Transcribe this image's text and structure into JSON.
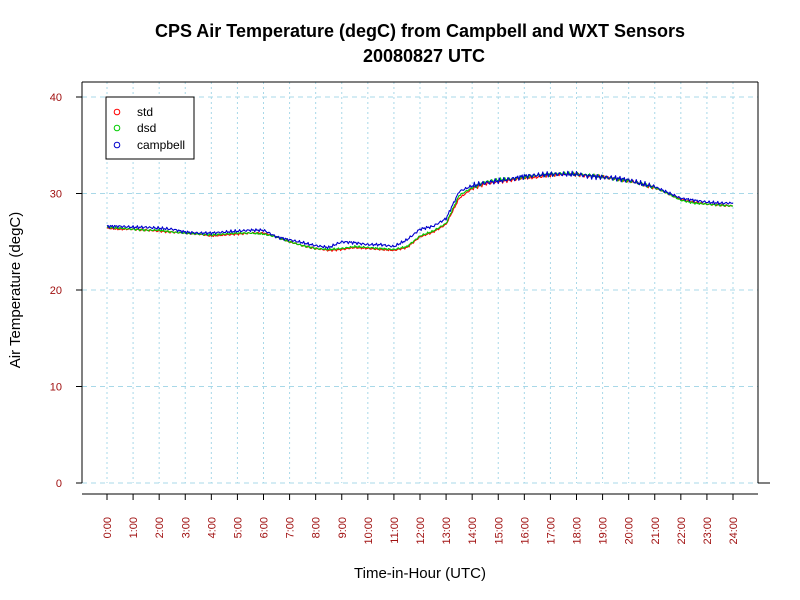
{
  "colors": {
    "std": "#ff0000",
    "dsd": "#00cc00",
    "campbell": "#0000cc",
    "grid": "#a8d8e8",
    "tick_label": "#a01010"
  },
  "chart_data": {
    "type": "line",
    "title": "CPS Air Temperature (degC) from Campbell and WXT Sensors",
    "subtitle": "20080827  UTC",
    "xlabel": "Time-in-Hour (UTC)",
    "ylabel": "Air Temperature (degC)",
    "xlim": [
      0,
      24
    ],
    "ylim": [
      0,
      40
    ],
    "grid": true,
    "legend_position": "top-left",
    "yticks": [
      "0",
      "10",
      "20",
      "30",
      "40"
    ],
    "xticks": [
      "0:00",
      "1:00",
      "2:00",
      "3:00",
      "4:00",
      "5:00",
      "6:00",
      "7:00",
      "8:00",
      "9:00",
      "10:00",
      "11:00",
      "12:00",
      "13:00",
      "14:00",
      "15:00",
      "16:00",
      "17:00",
      "18:00",
      "19:00",
      "20:00",
      "21:00",
      "22:00",
      "23:00",
      "24:00"
    ],
    "x": [
      0,
      0.5,
      1,
      1.5,
      2,
      2.5,
      3,
      3.5,
      4,
      4.5,
      5,
      5.5,
      6,
      6.5,
      7,
      7.5,
      8,
      8.5,
      9,
      9.5,
      10,
      10.5,
      11,
      11.5,
      12,
      12.5,
      13,
      13.5,
      14,
      14.5,
      15,
      15.5,
      16,
      16.5,
      17,
      17.5,
      18,
      18.5,
      19,
      19.5,
      20,
      20.5,
      21,
      21.5,
      22,
      22.5,
      23,
      23.5,
      24
    ],
    "series": [
      {
        "name": "std",
        "values": [
          26.4,
          26.3,
          26.3,
          26.2,
          26.1,
          26.0,
          25.9,
          25.8,
          25.6,
          25.7,
          25.8,
          25.9,
          25.9,
          25.5,
          25.0,
          24.6,
          24.3,
          24.1,
          24.2,
          24.4,
          24.3,
          24.2,
          24.1,
          24.4,
          25.5,
          26.0,
          26.8,
          29.5,
          30.5,
          31.0,
          31.2,
          31.4,
          31.6,
          31.7,
          31.9,
          32.0,
          32.0,
          31.8,
          31.7,
          31.5,
          31.3,
          31.0,
          30.6,
          30.0,
          29.4,
          29.1,
          28.9,
          28.8,
          28.7
        ]
      },
      {
        "name": "dsd",
        "values": [
          26.5,
          26.4,
          26.3,
          26.2,
          26.2,
          26.0,
          25.9,
          25.8,
          25.7,
          25.8,
          25.9,
          25.9,
          25.8,
          25.5,
          25.0,
          24.6,
          24.3,
          24.2,
          24.3,
          24.5,
          24.4,
          24.3,
          24.2,
          24.5,
          25.6,
          26.1,
          26.9,
          29.8,
          30.6,
          31.2,
          31.4,
          31.5,
          31.7,
          31.9,
          32.0,
          32.1,
          32.0,
          31.9,
          31.7,
          31.5,
          31.3,
          31.0,
          30.6,
          30.0,
          29.3,
          29.0,
          28.9,
          28.8,
          28.7
        ]
      },
      {
        "name": "campbell",
        "values": [
          26.6,
          26.6,
          26.5,
          26.5,
          26.4,
          26.3,
          26.0,
          25.9,
          25.9,
          26.0,
          26.1,
          26.2,
          26.2,
          25.5,
          25.2,
          24.9,
          24.6,
          24.4,
          25.0,
          24.9,
          24.7,
          24.7,
          24.5,
          25.2,
          26.3,
          26.6,
          27.4,
          30.2,
          30.8,
          31.1,
          31.3,
          31.5,
          31.8,
          31.9,
          32.0,
          32.0,
          32.0,
          31.8,
          31.7,
          31.6,
          31.4,
          31.0,
          30.7,
          30.1,
          29.5,
          29.3,
          29.1,
          29.0,
          29.0
        ]
      }
    ]
  }
}
